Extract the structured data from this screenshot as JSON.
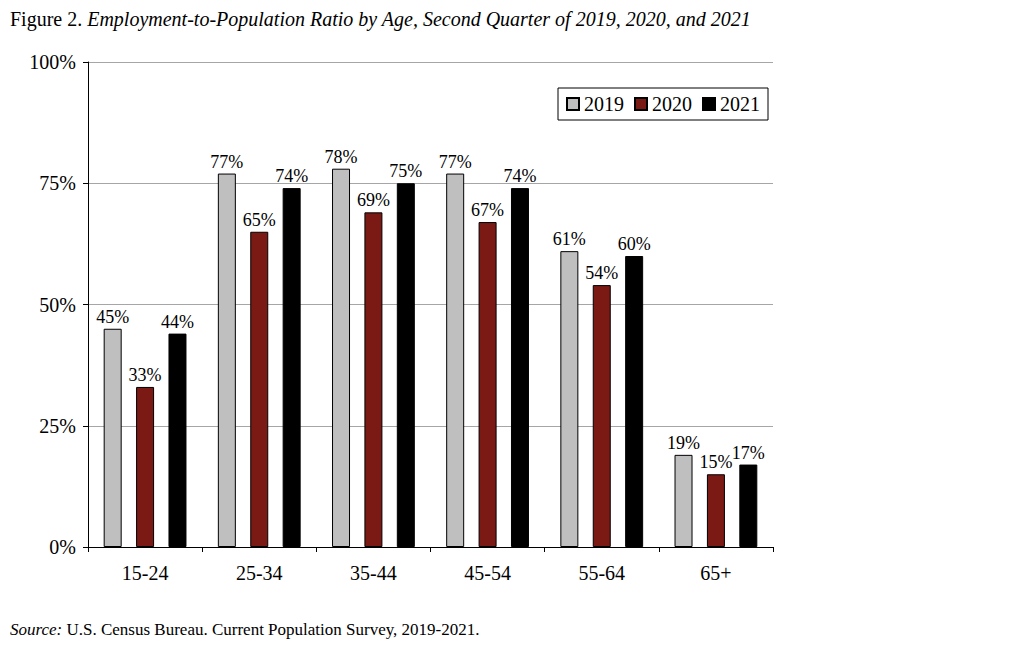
{
  "chart_data": {
    "type": "bar",
    "title": "Figure 2. Employment-to-Population Ratio by Age, Second Quarter of 2019, 2020, and 2021",
    "source": "Source: U.S. Census Bureau. Current Population Survey, 2019-2021.",
    "categories": [
      "15-24",
      "25-34",
      "35-44",
      "45-54",
      "55-64",
      "65+"
    ],
    "series": [
      {
        "name": "2019",
        "color": "#bfbfbf",
        "values": [
          45,
          77,
          78,
          77,
          61,
          19
        ],
        "value_labels": [
          "45%",
          "77%",
          "78%",
          "77%",
          "61%",
          "19%"
        ]
      },
      {
        "name": "2020",
        "color": "#7b1a15",
        "values": [
          33,
          65,
          69,
          67,
          54,
          15
        ],
        "value_labels": [
          "33%",
          "65%",
          "69%",
          "67%",
          "54%",
          "15%"
        ]
      },
      {
        "name": "2021",
        "color": "#000000",
        "values": [
          44,
          74,
          75,
          74,
          60,
          17
        ],
        "value_labels": [
          "44%",
          "74%",
          "75%",
          "74%",
          "60%",
          "17%"
        ]
      }
    ],
    "ylim": [
      0,
      100
    ],
    "yticks": [
      {
        "value": 0,
        "label": "0%"
      },
      {
        "value": 25,
        "label": "25%"
      },
      {
        "value": 50,
        "label": "50%"
      },
      {
        "value": 75,
        "label": "75%"
      },
      {
        "value": 100,
        "label": "100%"
      }
    ],
    "grid": true,
    "legend": "upper right",
    "data_labels": true
  }
}
